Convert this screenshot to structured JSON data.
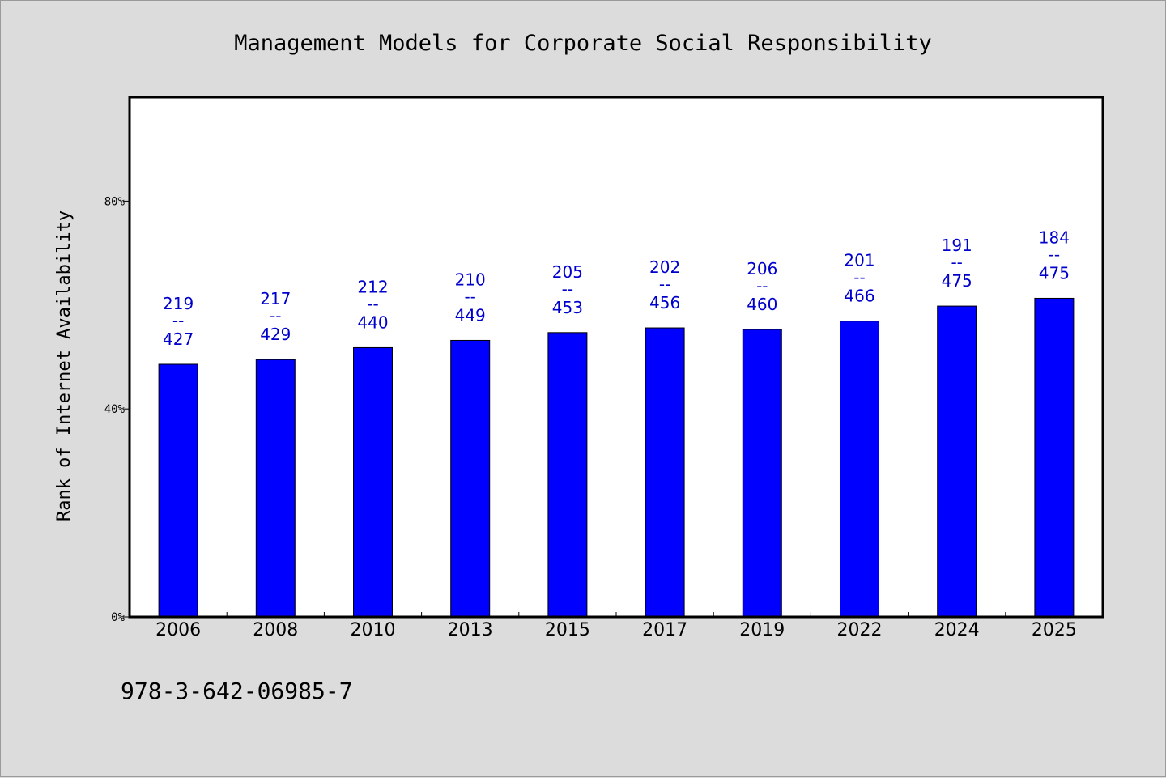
{
  "chart_data": {
    "type": "bar",
    "title": "Management Models for Corporate Social Responsibility",
    "xlabel": "",
    "ylabel": "Rank of Internet Availability",
    "ylim": [
      0,
      100
    ],
    "yticks": [
      0,
      40,
      80
    ],
    "ytick_labels": [
      "0%",
      "40%",
      "80%"
    ],
    "grid": false,
    "bar_color": "#0000ff",
    "label_color": "#0000cc",
    "categories": [
      "2006",
      "2008",
      "2010",
      "2013",
      "2015",
      "2017",
      "2019",
      "2022",
      "2024",
      "2025"
    ],
    "values": [
      48.6,
      49.5,
      51.8,
      53.2,
      54.7,
      55.6,
      55.3,
      56.9,
      59.8,
      61.3
    ],
    "rank": [
      219,
      217,
      212,
      210,
      205,
      202,
      206,
      201,
      191,
      184
    ],
    "total": [
      427,
      429,
      440,
      449,
      453,
      456,
      460,
      466,
      475,
      475
    ],
    "label_separator": "--"
  },
  "footer": {
    "isbn": "978-3-642-06985-7"
  }
}
